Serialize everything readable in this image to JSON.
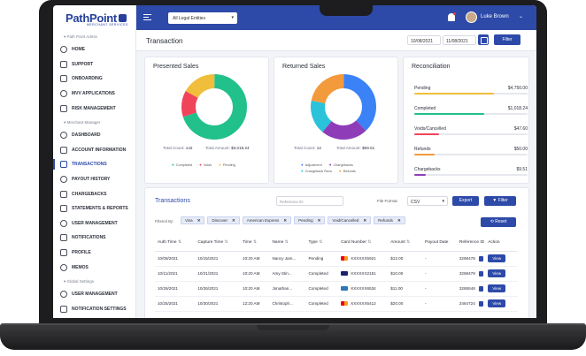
{
  "brand": {
    "name": "PathPoint",
    "tagline": "MERCHANT SERVICES"
  },
  "sidebar": {
    "sections": [
      {
        "label": "Path Point Admin",
        "items": [
          {
            "label": "HOME",
            "icon": "home-icon"
          },
          {
            "label": "SUPPORT",
            "icon": "headset-icon"
          },
          {
            "label": "ONBOARDING",
            "icon": "onboarding-icon"
          },
          {
            "label": "MVV APPLICATIONS",
            "icon": "applications-icon"
          },
          {
            "label": "RISK MANAGEMENT",
            "icon": "shield-icon"
          }
        ]
      },
      {
        "label": "Merchant Manager",
        "items": [
          {
            "label": "DASHBOARD",
            "icon": "dashboard-icon"
          },
          {
            "label": "ACCOUNT INFORMATION",
            "icon": "account-icon"
          },
          {
            "label": "TRANSACTIONS",
            "icon": "transactions-icon",
            "active": true
          },
          {
            "label": "PAYOUT HISTORY",
            "icon": "payout-icon"
          },
          {
            "label": "CHARGEBACKS",
            "icon": "chargeback-icon"
          },
          {
            "label": "STATEMENTS & REPORTS",
            "icon": "statements-icon"
          },
          {
            "label": "USER MANAGEMENT",
            "icon": "users-icon"
          },
          {
            "label": "NOTIFICATIONS",
            "icon": "bell-icon"
          },
          {
            "label": "PROFILE",
            "icon": "profile-icon"
          },
          {
            "label": "MEMOS",
            "icon": "memo-icon"
          }
        ]
      },
      {
        "label": "Global Settings",
        "items": [
          {
            "label": "USER MANAGEMENT",
            "icon": "users-icon"
          },
          {
            "label": "NOTIFICATION SETTINGS",
            "icon": "bell-icon"
          }
        ]
      }
    ]
  },
  "topbar": {
    "entity_select": "All Legal Entities",
    "user_name": "Luke Brown"
  },
  "header": {
    "title": "Transaction",
    "date_from": "10/08/2021",
    "date_to": "11/08/2021",
    "filter_label": "Filter"
  },
  "presented_sales": {
    "title": "Presented Sales",
    "total_count_label": "Total Count:",
    "total_count": "142",
    "total_amount_label": "Total Amount:",
    "total_amount": "$3,018.24",
    "legend": [
      {
        "label": "Completed",
        "color": "#22c08a"
      },
      {
        "label": "Voids",
        "color": "#f0445a"
      },
      {
        "label": "Pending",
        "color": "#f0be3a"
      }
    ],
    "slices": [
      0.7,
      0.13,
      0.17
    ]
  },
  "returned_sales": {
    "title": "Returned Sales",
    "total_count_label": "Total Count:",
    "total_count": "12",
    "total_amount_label": "Total Amount:",
    "total_amount": "$59.61",
    "legend": [
      {
        "label": "Adjustment",
        "color": "#3b82f6"
      },
      {
        "label": "Chargebacks",
        "color": "#8e3cb8"
      },
      {
        "label": "Chargeback Revs",
        "color": "#2ac3d9"
      },
      {
        "label": "Refunds",
        "color": "#f39a3c"
      }
    ],
    "slices": [
      0.38,
      0.23,
      0.17,
      0.22
    ]
  },
  "reconciliation": {
    "title": "Reconciliation",
    "rows": [
      {
        "label": "Pending",
        "amount": "$4,750.00",
        "fill": 0.7,
        "color": "#f0be3a"
      },
      {
        "label": "Completed",
        "amount": "$1,018.24",
        "fill": 0.62,
        "color": "#22c08a"
      },
      {
        "label": "Voids/Cancelled",
        "amount": "$47.60",
        "fill": 0.22,
        "color": "#f0445a"
      },
      {
        "label": "Refunds",
        "amount": "$50.00",
        "fill": 0.18,
        "color": "#f39a3c"
      },
      {
        "label": "Chargebacks",
        "amount": "$9.51",
        "fill": 0.1,
        "color": "#8e3cb8"
      }
    ]
  },
  "transactions": {
    "title": "Transactions",
    "ref_placeholder": "Reference ID",
    "file_format_label": "File Format",
    "file_format": "CSV",
    "export_label": "Export",
    "filter_label": "Filter",
    "filtered_by_label": "Filtered By:",
    "chips": [
      "Visa",
      "Discover",
      "American Express",
      "Pending",
      "Void/Cancelled",
      "Refunds"
    ],
    "reset_label": "Reset",
    "columns": [
      "Auth Time",
      "Capture Time",
      "Time",
      "Name",
      "Type",
      "Card Number",
      "Amount",
      "Payout Date",
      "Reference ID",
      "Action"
    ],
    "rows": [
      {
        "auth": "10/08/2021",
        "capture": "10/15/2021",
        "time": "10:20 AM",
        "name": "Nancy Jam...",
        "type": "Pending",
        "card_brand": "mastercard",
        "card": "XXXXXX5921",
        "amount": "$12.00",
        "payout": "-",
        "ref": "3268478",
        "action": "View"
      },
      {
        "auth": "10/11/2021",
        "capture": "10/21/2021",
        "time": "10:20 AM",
        "name": "Amy Stin...",
        "type": "Completed",
        "card_brand": "visa",
        "card": "XXXXXX2151",
        "amount": "$10.00",
        "payout": "-",
        "ref": "3268478",
        "action": "View"
      },
      {
        "auth": "10/26/2021",
        "capture": "10/26/2021",
        "time": "10:20 AM",
        "name": "Jonathan...",
        "type": "Completed",
        "card_brand": "amex",
        "card": "XXXXXX6534",
        "amount": "$11.00",
        "payout": "-",
        "ref": "3265548",
        "action": "View"
      },
      {
        "auth": "10/25/2021",
        "capture": "10/30/2021",
        "time": "12:20 AM",
        "name": "Christoph...",
        "type": "Completed",
        "card_brand": "mastercard",
        "card": "XXXXXX5412",
        "amount": "$20.00",
        "payout": "-",
        "ref": "2464724",
        "action": "View"
      }
    ]
  }
}
